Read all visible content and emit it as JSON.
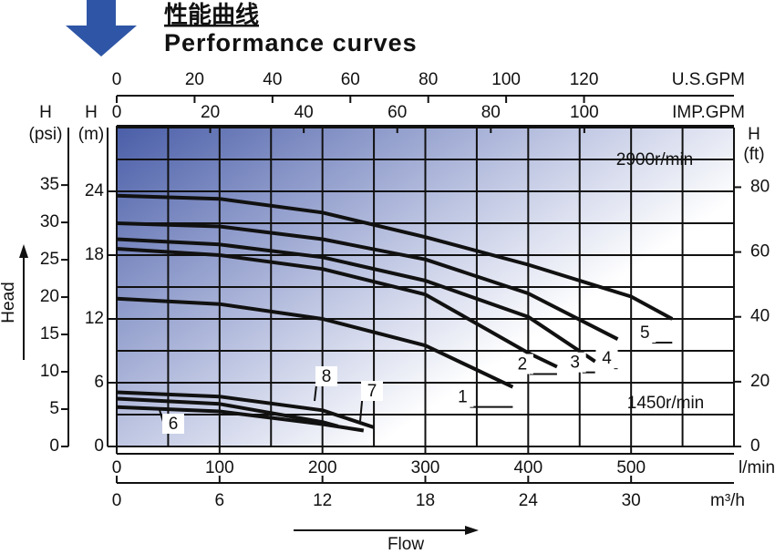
{
  "chart_data": {
    "type": "line",
    "title": "性能曲线",
    "subtitle": "Performance curves",
    "xlabel": "l/min",
    "ylabel": [
      "H",
      "(m)"
    ],
    "flow_label": "Flow",
    "head_label": "Head",
    "xlim": [
      0,
      600
    ],
    "xticks": [
      0,
      100,
      200,
      300,
      400,
      500
    ],
    "ylim": [
      0,
      30
    ],
    "yticks": [
      0,
      6,
      12,
      18,
      24
    ],
    "xgrid": [
      0,
      50,
      100,
      150,
      200,
      250,
      300,
      350,
      400,
      450,
      500,
      550,
      600
    ],
    "ygrid": [
      0,
      3,
      6,
      9,
      12,
      15,
      18,
      21,
      24,
      27,
      30
    ],
    "grid": true,
    "annotations": [
      "2900r/min",
      "1450r/min"
    ],
    "axes": [
      {
        "name": "U.S.GPM",
        "side": "top",
        "lim": [
          0,
          158.5
        ],
        "ticks": [
          0,
          20,
          40,
          60,
          80,
          100,
          120
        ]
      },
      {
        "name": "IMP.GPM",
        "side": "top2",
        "lim": [
          0,
          132
        ],
        "ticks": [
          0,
          20,
          40,
          60,
          80,
          100
        ]
      },
      {
        "name": "m³/h",
        "side": "bottom2",
        "lim": [
          0,
          36
        ],
        "ticks": [
          0,
          6,
          12,
          18,
          24,
          30
        ]
      },
      {
        "name": [
          "H",
          "(psi)"
        ],
        "side": "left2",
        "lim": [
          0,
          42.7
        ],
        "ticks": [
          0,
          5,
          10,
          15,
          20,
          25,
          30,
          35
        ]
      },
      {
        "name": [
          "H",
          "(ft)"
        ],
        "side": "right",
        "lim": [
          0,
          98.4
        ],
        "ticks": [
          0,
          20,
          40,
          60,
          80
        ]
      }
    ],
    "series": [
      {
        "name": "1",
        "color": "#111111",
        "x": [
          0,
          100,
          200,
          300,
          385
        ],
        "values": [
          13.9,
          13.4,
          12.0,
          9.5,
          5.6
        ]
      },
      {
        "name": "2",
        "color": "#111111",
        "x": [
          0,
          100,
          200,
          300,
          400,
          428
        ],
        "values": [
          18.6,
          18.0,
          16.7,
          14.3,
          8.8,
          7.5
        ]
      },
      {
        "name": "3",
        "color": "#111111",
        "x": [
          0,
          100,
          200,
          300,
          400,
          465
        ],
        "values": [
          19.5,
          19.0,
          17.8,
          15.6,
          12.2,
          8.0
        ]
      },
      {
        "name": "4",
        "color": "#111111",
        "x": [
          0,
          100,
          200,
          300,
          400,
          487
        ],
        "values": [
          21.0,
          20.7,
          19.5,
          17.6,
          14.4,
          10.1
        ]
      },
      {
        "name": "5",
        "color": "#111111",
        "x": [
          0,
          100,
          200,
          300,
          400,
          500,
          540
        ],
        "values": [
          23.6,
          23.3,
          22.0,
          19.7,
          17.1,
          14.1,
          12.0
        ]
      },
      {
        "name": "6",
        "color": "#111111",
        "x": [
          0,
          100,
          200,
          240
        ],
        "values": [
          3.7,
          3.3,
          2.1,
          1.5
        ]
      },
      {
        "name": "7",
        "color": "#111111",
        "x": [
          0,
          100,
          200,
          250
        ],
        "values": [
          5.1,
          4.7,
          3.4,
          1.8
        ]
      },
      {
        "name": "8",
        "color": "#111111",
        "x": [
          0,
          100,
          200,
          215
        ],
        "values": [
          4.5,
          4.0,
          2.3,
          1.9
        ]
      }
    ]
  }
}
